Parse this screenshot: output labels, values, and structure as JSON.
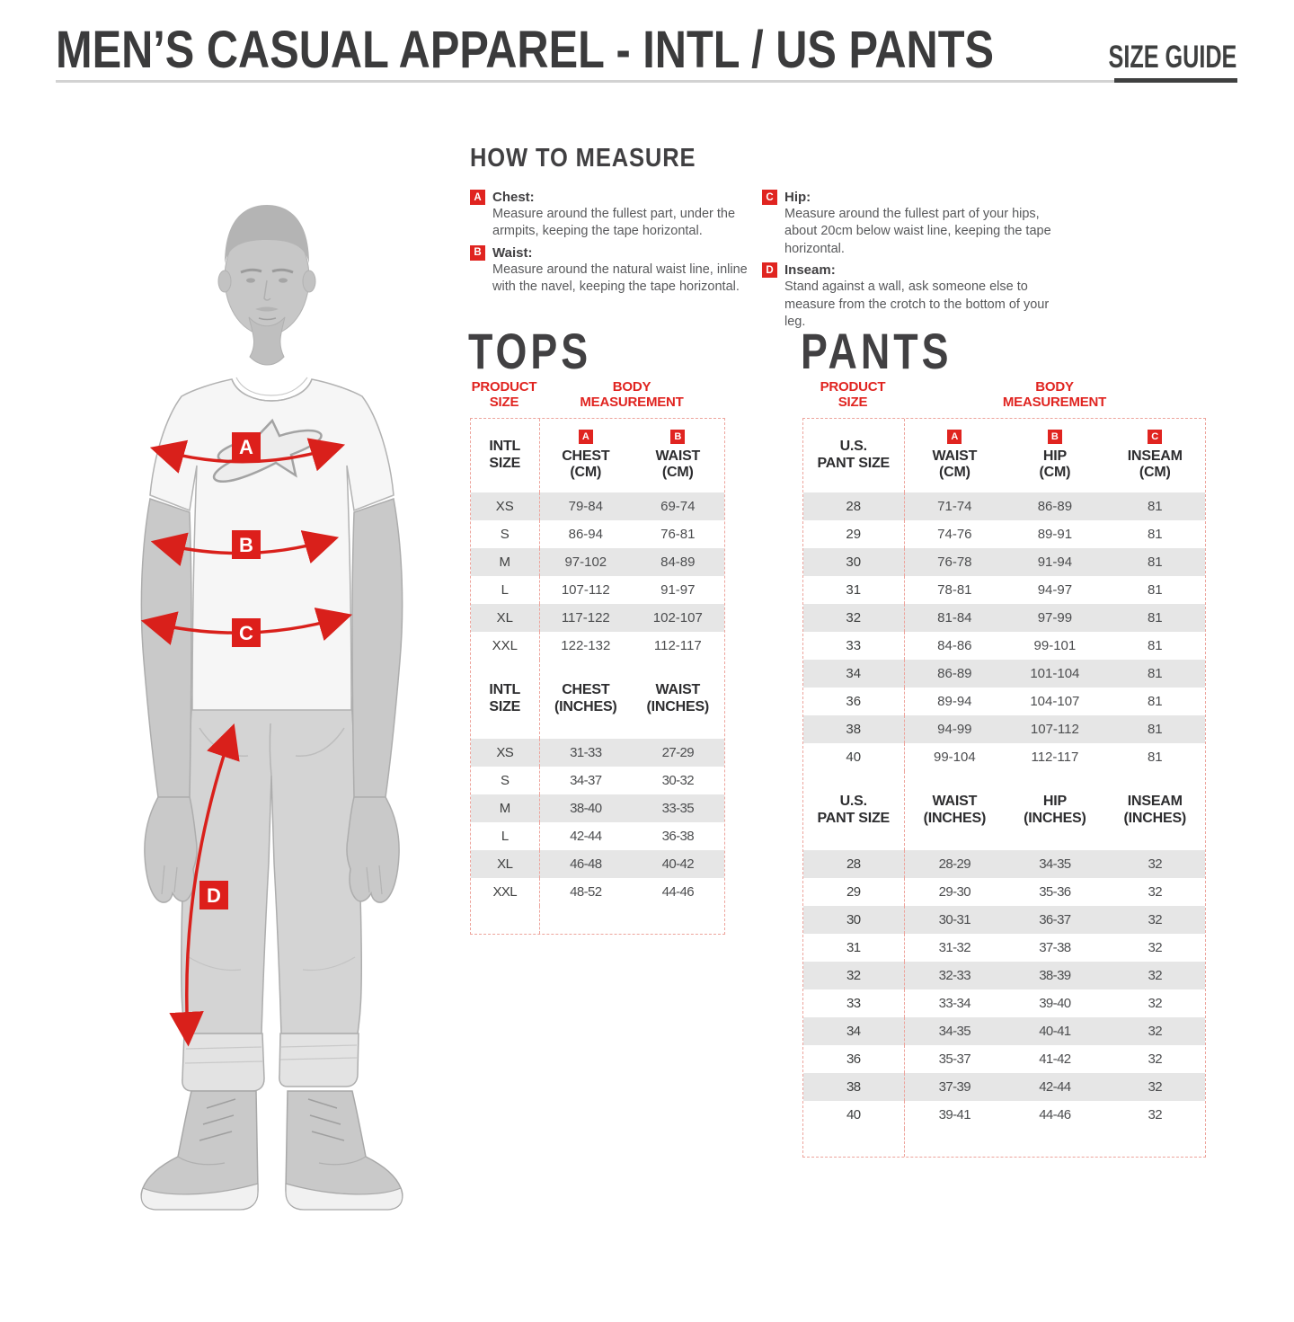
{
  "colors": {
    "accent_red": "#e02420",
    "dashed_border": "#eda49c",
    "row_stripe": "#e6e6e6",
    "heading_gray": "#414042"
  },
  "header": {
    "title": "MEN’S CASUAL APPAREL - INTL / US PANTS",
    "size_guide": "SIZE GUIDE"
  },
  "how": {
    "heading": "HOW TO MEASURE",
    "items": [
      {
        "badge": "A",
        "label": "Chest:",
        "text": "Measure around the fullest part, under the armpits, keeping the tape horizontal."
      },
      {
        "badge": "B",
        "label": "Waist:",
        "text": "Measure around the natural waist line, inline with the navel, keeping the tape horizontal."
      },
      {
        "badge": "C",
        "label": "Hip:",
        "text": "Measure around the fullest part of your hips, about 20cm below waist line, keeping the tape horizontal."
      },
      {
        "badge": "D",
        "label": "Inseam:",
        "text": "Stand against a wall, ask someone else to measure from the crotch to the bottom of your leg."
      }
    ]
  },
  "figure": {
    "badges": [
      "A",
      "B",
      "C",
      "D"
    ]
  },
  "tops": {
    "heading": "TOPS",
    "group_product": "PRODUCT\nSIZE",
    "group_body": "BODY\nMEASUREMENT",
    "cm": {
      "headers": [
        {
          "badge": "",
          "l1": "INTL",
          "l2": "SIZE"
        },
        {
          "badge": "A",
          "l1": "CHEST",
          "l2": "(CM)"
        },
        {
          "badge": "B",
          "l1": "WAIST",
          "l2": "(CM)"
        }
      ],
      "rows": [
        [
          "XS",
          "79-84",
          "69-74"
        ],
        [
          "S",
          "86-94",
          "76-81"
        ],
        [
          "M",
          "97-102",
          "84-89"
        ],
        [
          "L",
          "107-112",
          "91-97"
        ],
        [
          "XL",
          "117-122",
          "102-107"
        ],
        [
          "XXL",
          "122-132",
          "112-117"
        ]
      ]
    },
    "inch": {
      "headers": [
        {
          "l1": "INTL",
          "l2": "SIZE"
        },
        {
          "l1": "CHEST",
          "l2": "(INCHES)"
        },
        {
          "l1": "WAIST",
          "l2": "(INCHES)"
        }
      ],
      "rows": [
        [
          "XS",
          "31-33",
          "27-29"
        ],
        [
          "S",
          "34-37",
          "30-32"
        ],
        [
          "M",
          "38-40",
          "33-35"
        ],
        [
          "L",
          "42-44",
          "36-38"
        ],
        [
          "XL",
          "46-48",
          "40-42"
        ],
        [
          "XXL",
          "48-52",
          "44-46"
        ]
      ]
    }
  },
  "pants": {
    "heading": "PANTS",
    "group_product": "PRODUCT\nSIZE",
    "group_body": "BODY\nMEASUREMENT",
    "cm": {
      "headers": [
        {
          "l1": "U.S.",
          "l2": "PANT SIZE"
        },
        {
          "badge": "A",
          "l1": "WAIST",
          "l2": "(CM)"
        },
        {
          "badge": "B",
          "l1": "HIP",
          "l2": "(CM)"
        },
        {
          "badge": "C",
          "l1": "INSEAM",
          "l2": "(CM)"
        }
      ],
      "rows": [
        [
          "28",
          "71-74",
          "86-89",
          "81"
        ],
        [
          "29",
          "74-76",
          "89-91",
          "81"
        ],
        [
          "30",
          "76-78",
          "91-94",
          "81"
        ],
        [
          "31",
          "78-81",
          "94-97",
          "81"
        ],
        [
          "32",
          "81-84",
          "97-99",
          "81"
        ],
        [
          "33",
          "84-86",
          "99-101",
          "81"
        ],
        [
          "34",
          "86-89",
          "101-104",
          "81"
        ],
        [
          "36",
          "89-94",
          "104-107",
          "81"
        ],
        [
          "38",
          "94-99",
          "107-112",
          "81"
        ],
        [
          "40",
          "99-104",
          "112-117",
          "81"
        ]
      ]
    },
    "inch": {
      "headers": [
        {
          "l1": "U.S.",
          "l2": "PANT SIZE"
        },
        {
          "l1": "WAIST",
          "l2": "(INCHES)"
        },
        {
          "l1": "HIP",
          "l2": "(INCHES)"
        },
        {
          "l1": "INSEAM",
          "l2": "(INCHES)"
        }
      ],
      "rows": [
        [
          "28",
          "28-29",
          "34-35",
          "32"
        ],
        [
          "29",
          "29-30",
          "35-36",
          "32"
        ],
        [
          "30",
          "30-31",
          "36-37",
          "32"
        ],
        [
          "31",
          "31-32",
          "37-38",
          "32"
        ],
        [
          "32",
          "32-33",
          "38-39",
          "32"
        ],
        [
          "33",
          "33-34",
          "39-40",
          "32"
        ],
        [
          "34",
          "34-35",
          "40-41",
          "32"
        ],
        [
          "36",
          "35-37",
          "41-42",
          "32"
        ],
        [
          "38",
          "37-39",
          "42-44",
          "32"
        ],
        [
          "40",
          "39-41",
          "44-46",
          "32"
        ]
      ]
    }
  }
}
